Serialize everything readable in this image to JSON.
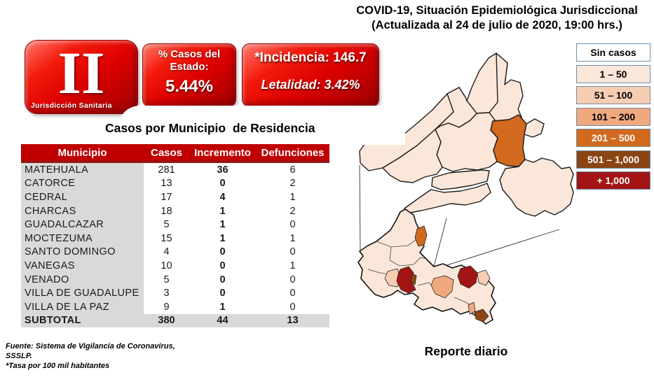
{
  "title": {
    "line1": "COVID-19, Situación Epidemiológica Jurisdiccional",
    "line2": "(Actualizada al 24 de julio de 2020, 19:00 hrs.)"
  },
  "badges": {
    "jurisdiction": {
      "numeral": "II",
      "label": "Jurisdicción Sanitaria"
    },
    "state_cases": {
      "label_line1": "% Casos del",
      "label_line2": "Estado:",
      "value": "5.44%"
    },
    "rates": {
      "incidencia": "*Incidencia: 146.7",
      "letalidad": "Letalidad: 3.42%"
    }
  },
  "table": {
    "title": "Casos por Municipio  de Residencia",
    "columns": [
      "Municipio",
      "Casos",
      "Incremento",
      "Defunciones"
    ],
    "rows": [
      {
        "municipio": "MATEHUALA",
        "casos": "281",
        "incremento": "36",
        "defunciones": "6"
      },
      {
        "municipio": "CATORCE",
        "casos": "13",
        "incremento": "0",
        "defunciones": "2"
      },
      {
        "municipio": "CEDRAL",
        "casos": "17",
        "incremento": "4",
        "defunciones": "1"
      },
      {
        "municipio": "CHARCAS",
        "casos": "18",
        "incremento": "1",
        "defunciones": "2"
      },
      {
        "municipio": "GUADALCAZAR",
        "casos": "5",
        "incremento": "1",
        "defunciones": "0"
      },
      {
        "municipio": "MOCTEZUMA",
        "casos": "15",
        "incremento": "1",
        "defunciones": "1"
      },
      {
        "municipio": "SANTO DOMINGO",
        "casos": "4",
        "incremento": "0",
        "defunciones": "0"
      },
      {
        "municipio": "VANEGAS",
        "casos": "10",
        "incremento": "0",
        "defunciones": "1"
      },
      {
        "municipio": "VENADO",
        "casos": "5",
        "incremento": "0",
        "defunciones": "0"
      },
      {
        "municipio": "VILLA DE GUADALUPE",
        "casos": "3",
        "incremento": "0",
        "defunciones": "0"
      },
      {
        "municipio": "VILLA DE LA PAZ",
        "casos": "9",
        "incremento": "1",
        "defunciones": "0"
      }
    ],
    "subtotal": {
      "municipio": "SUBTOTAL",
      "casos": "380",
      "incremento": "44",
      "defunciones": "13"
    }
  },
  "legend": {
    "items": [
      {
        "label": "Sin casos",
        "color": "#FFFFFF",
        "text_color": "#000000"
      },
      {
        "label": "1 – 50",
        "color": "#FBE7D9",
        "text_color": "#000000"
      },
      {
        "label": "51 – 100",
        "color": "#F6CDB2",
        "text_color": "#000000"
      },
      {
        "label": "101 – 200",
        "color": "#F0A87E",
        "text_color": "#000000"
      },
      {
        "label": "201 – 500",
        "color": "#D2691E",
        "text_color": "#FFFFFF"
      },
      {
        "label": "501 – 1,000",
        "color": "#8B4513",
        "text_color": "#FFFFFF"
      },
      {
        "label": "+ 1,000",
        "color": "#A31515",
        "text_color": "#FFFFFF"
      }
    ]
  },
  "map": {
    "caption": "Reporte diario"
  },
  "colors": {
    "table_header": "#C00000",
    "badge_red": "#D70000",
    "row_gray": "#D9D9D9"
  },
  "footer": {
    "line1": "Fuente: Sistema de Vigilancia  de Coronavirus,",
    "line2": "SSSLP.",
    "line3": "*Tasa por 100 mil habitantes"
  }
}
